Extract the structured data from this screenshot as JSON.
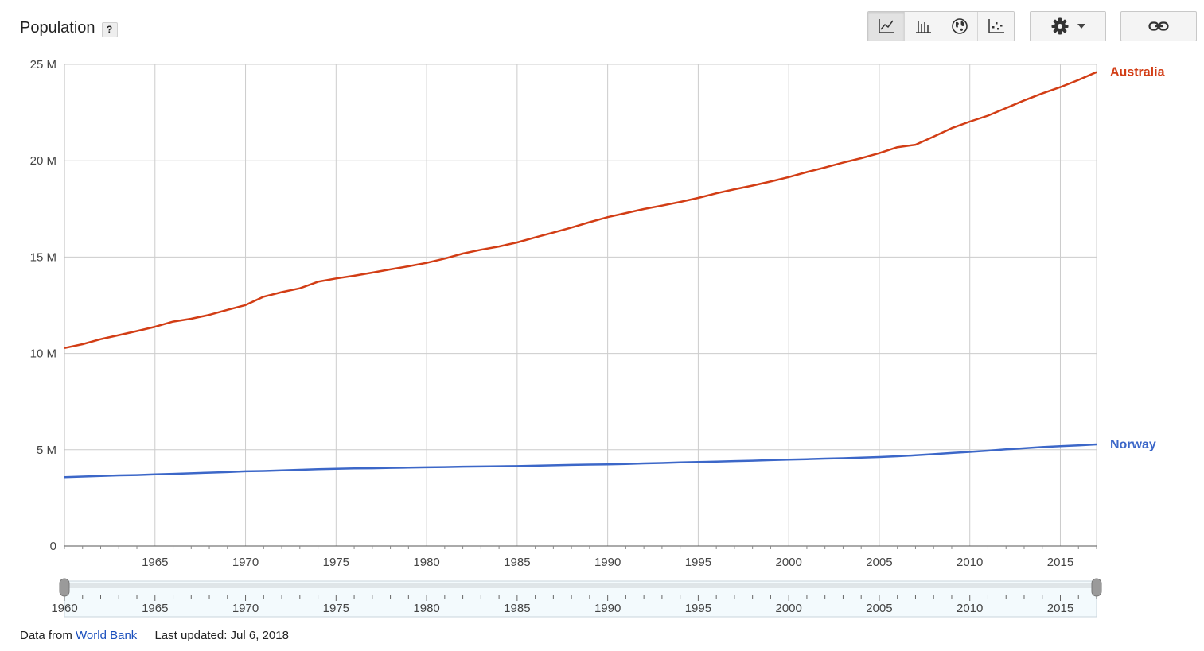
{
  "header": {
    "title": "Population",
    "help_label": "?"
  },
  "toolbar": {
    "buttons": [
      {
        "icon": "line-chart-icon",
        "active": true
      },
      {
        "icon": "bar-chart-icon",
        "active": false
      },
      {
        "icon": "globe-map-icon",
        "active": false
      },
      {
        "icon": "scatter-plot-icon",
        "active": false
      }
    ],
    "settings_icon": "gear-icon",
    "link_icon": "link-icon"
  },
  "chart_data": {
    "type": "line",
    "title": "Population",
    "xlim": [
      1960,
      2017
    ],
    "ylim": [
      0,
      25000000
    ],
    "yticks": [
      0,
      5000000,
      10000000,
      15000000,
      20000000,
      25000000
    ],
    "ytick_labels": [
      "0",
      "5 M",
      "10 M",
      "15 M",
      "20 M",
      "25 M"
    ],
    "xticks": [
      1965,
      1970,
      1975,
      1980,
      1985,
      1990,
      1995,
      2000,
      2005,
      2010,
      2015
    ],
    "xtick_labels": [
      "1965",
      "1970",
      "1975",
      "1980",
      "1985",
      "1990",
      "1995",
      "2000",
      "2005",
      "2010",
      "2015"
    ],
    "grid": true,
    "legend": "right, at line ends",
    "x": [
      1960,
      1961,
      1962,
      1963,
      1964,
      1965,
      1966,
      1967,
      1968,
      1969,
      1970,
      1971,
      1972,
      1973,
      1974,
      1975,
      1976,
      1977,
      1978,
      1979,
      1980,
      1981,
      1982,
      1983,
      1984,
      1985,
      1986,
      1987,
      1988,
      1989,
      1990,
      1991,
      1992,
      1993,
      1994,
      1995,
      1996,
      1997,
      1998,
      1999,
      2000,
      2001,
      2002,
      2003,
      2004,
      2005,
      2006,
      2007,
      2008,
      2009,
      2010,
      2011,
      2012,
      2013,
      2014,
      2015,
      2016,
      2017
    ],
    "series": [
      {
        "name": "Australia",
        "color": "#d23d15",
        "values": [
          10280000,
          10480000,
          10740000,
          10950000,
          11160000,
          11380000,
          11650000,
          11800000,
          12000000,
          12260000,
          12510000,
          12940000,
          13180000,
          13380000,
          13720000,
          13890000,
          14030000,
          14190000,
          14360000,
          14520000,
          14700000,
          14920000,
          15180000,
          15380000,
          15550000,
          15760000,
          16020000,
          16270000,
          16530000,
          16810000,
          17070000,
          17280000,
          17490000,
          17670000,
          17860000,
          18070000,
          18310000,
          18520000,
          18710000,
          18920000,
          19150000,
          19410000,
          19650000,
          19900000,
          20130000,
          20390000,
          20700000,
          20830000,
          21250000,
          21690000,
          22030000,
          22340000,
          22730000,
          23130000,
          23490000,
          23820000,
          24190000,
          24600000
        ]
      },
      {
        "name": "Norway",
        "color": "#3c67c8",
        "values": [
          3580000,
          3610000,
          3640000,
          3670000,
          3690000,
          3720000,
          3750000,
          3780000,
          3810000,
          3840000,
          3880000,
          3900000,
          3930000,
          3960000,
          3990000,
          4010000,
          4030000,
          4040000,
          4060000,
          4070000,
          4090000,
          4100000,
          4120000,
          4130000,
          4140000,
          4150000,
          4170000,
          4190000,
          4210000,
          4230000,
          4240000,
          4260000,
          4290000,
          4310000,
          4340000,
          4360000,
          4380000,
          4410000,
          4430000,
          4460000,
          4490000,
          4510000,
          4540000,
          4560000,
          4590000,
          4620000,
          4660000,
          4710000,
          4770000,
          4830000,
          4890000,
          4950000,
          5020000,
          5080000,
          5140000,
          5190000,
          5230000,
          5280000
        ]
      }
    ]
  },
  "range_slider": {
    "start_label": "1960",
    "year_labels": [
      "1965",
      "1970",
      "1975",
      "1980",
      "1985",
      "1990",
      "1995",
      "2000",
      "2005",
      "2010",
      "2015"
    ],
    "selected_start": 1960,
    "selected_end": 2017
  },
  "footer": {
    "source_prefix": "Data from",
    "source_link": "World Bank",
    "updated": "Last updated: Jul 6, 2018"
  }
}
